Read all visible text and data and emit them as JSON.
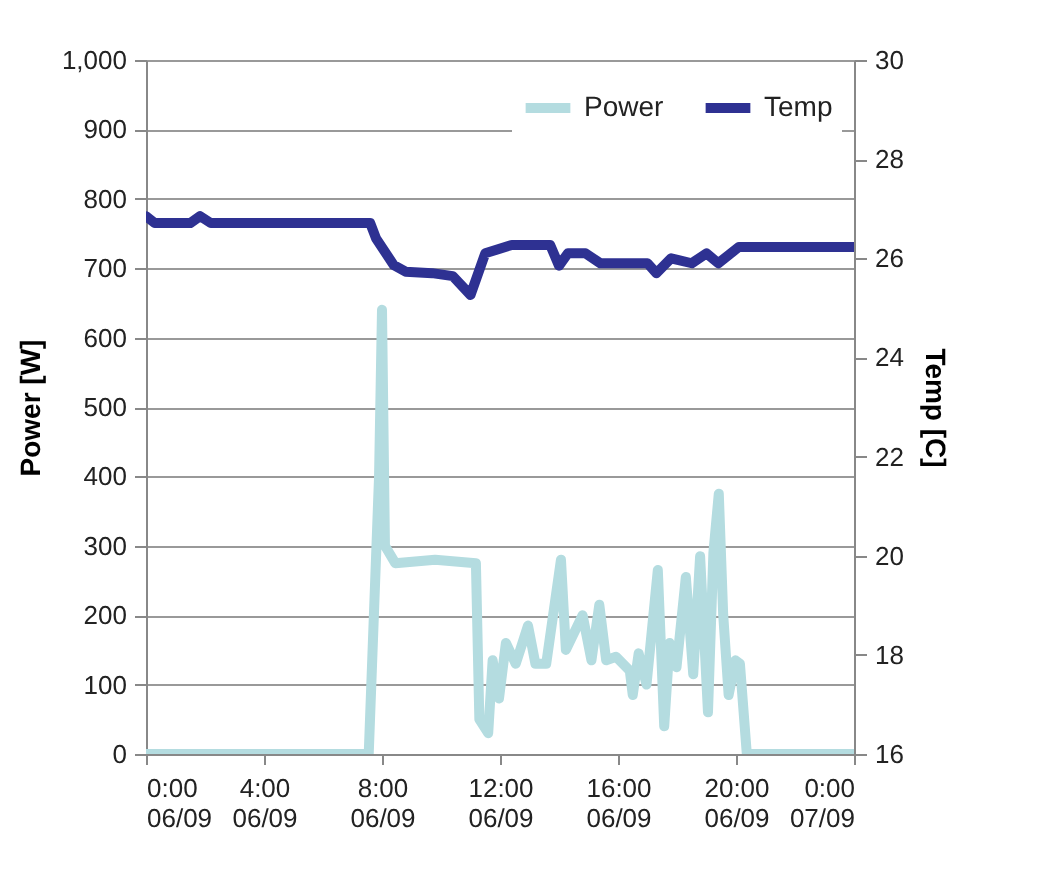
{
  "chart_data": {
    "type": "line",
    "ylabel": "Power [W]",
    "y2label": "Temp [C]",
    "xlim": [
      "--09-06T00:00",
      "--09-07T00:00"
    ],
    "xticks": [
      {
        "value": "--09-06T00:00",
        "label": "0:00\n06/09"
      },
      {
        "value": "--09-06T04:00",
        "label": "4:00\n06/09"
      },
      {
        "value": "--09-06T08:00",
        "label": "8:00\n06/09"
      },
      {
        "value": "--09-06T12:00",
        "label": "12:00\n06/09"
      },
      {
        "value": "--09-06T16:00",
        "label": "16:00\n06/09"
      },
      {
        "value": "--09-06T20:00",
        "label": "20:00\n06/09"
      },
      {
        "value": "--09-07T00:00",
        "label": "0:00\n07/09"
      }
    ],
    "ylim": [
      0,
      1000
    ],
    "yticks": [
      0,
      100,
      200,
      300,
      400,
      500,
      600,
      700,
      800,
      900,
      {
        "value": 1000,
        "label": "1,000"
      }
    ],
    "y2lim": [
      16,
      30
    ],
    "y2ticks": [
      16,
      18,
      20,
      22,
      24,
      26,
      28,
      30
    ],
    "grid": "y",
    "legend": "top right",
    "marker": "none",
    "line_style": "solid",
    "series": [
      {
        "name": "Power",
        "color": "#b4dce0",
        "x": [
          "--09-06T00:00",
          "--09-06T07:33",
          "--09-06T07:54",
          "--09-06T08:00",
          "--09-06T08:06",
          "--09-06T08:27",
          "--09-06T09:48",
          "--09-06T11:11",
          "--09-06T11:18",
          "--09-06T11:36",
          "--09-06T11:45",
          "--09-06T11:58",
          "--09-06T12:12",
          "--09-06T12:32",
          "--09-06T12:57",
          "--09-06T13:12",
          "--09-06T13:34",
          "--09-06T13:42",
          "--09-06T14:04",
          "--09-06T14:14",
          "--09-06T14:48",
          "--09-06T15:06",
          "--09-06T15:22",
          "--09-06T15:36",
          "--09-06T15:56",
          "--09-06T16:24",
          "--09-06T16:30",
          "--09-06T16:42",
          "--09-06T16:58",
          "--09-06T17:21",
          "--09-06T17:34",
          "--09-06T17:45",
          "--09-06T17:59",
          "--09-06T18:18",
          "--09-06T18:33",
          "--09-06T18:47",
          "--09-06T19:03",
          "--09-06T19:14",
          "--09-06T19:25",
          "--09-06T19:34",
          "--09-06T19:45",
          "--09-06T19:59",
          "--09-06T20:08",
          "--09-06T20:22",
          "--09-07T00:00"
        ],
        "values": [
          0,
          0,
          400,
          640,
          300,
          275,
          280,
          275,
          50,
          30,
          135,
          80,
          160,
          130,
          185,
          130,
          130,
          170,
          280,
          150,
          200,
          135,
          215,
          135,
          140,
          120,
          85,
          145,
          100,
          265,
          40,
          160,
          125,
          255,
          115,
          285,
          60,
          290,
          375,
          200,
          85,
          135,
          130,
          0,
          0
        ]
      },
      {
        "name": "Temp",
        "color": "#2e3192",
        "axis": "y2",
        "x": [
          "--09-06T00:00",
          "--09-06T00:18",
          "--09-06T01:30",
          "--09-06T01:50",
          "--09-06T02:12",
          "--09-06T07:36",
          "--09-06T07:48",
          "--09-06T08:24",
          "--09-06T08:48",
          "--09-06T09:42",
          "--09-06T10:24",
          "--09-06T11:00",
          "--09-06T11:30",
          "--09-06T12:24",
          "--09-06T13:42",
          "--09-06T14:00",
          "--09-06T14:18",
          "--09-06T14:54",
          "--09-06T15:24",
          "--09-06T17:00",
          "--09-06T17:18",
          "--09-06T17:48",
          "--09-06T18:30",
          "--09-06T19:00",
          "--09-06T19:24",
          "--09-06T20:06",
          "--09-07T00:00"
        ],
        "values": [
          26.85,
          26.71,
          26.71,
          26.85,
          26.71,
          26.71,
          26.4,
          25.86,
          25.73,
          25.7,
          25.64,
          25.26,
          26.1,
          26.27,
          26.27,
          25.85,
          26.1,
          26.1,
          25.9,
          25.9,
          25.7,
          26.0,
          25.9,
          26.1,
          25.9,
          26.23,
          26.23
        ]
      }
    ]
  }
}
